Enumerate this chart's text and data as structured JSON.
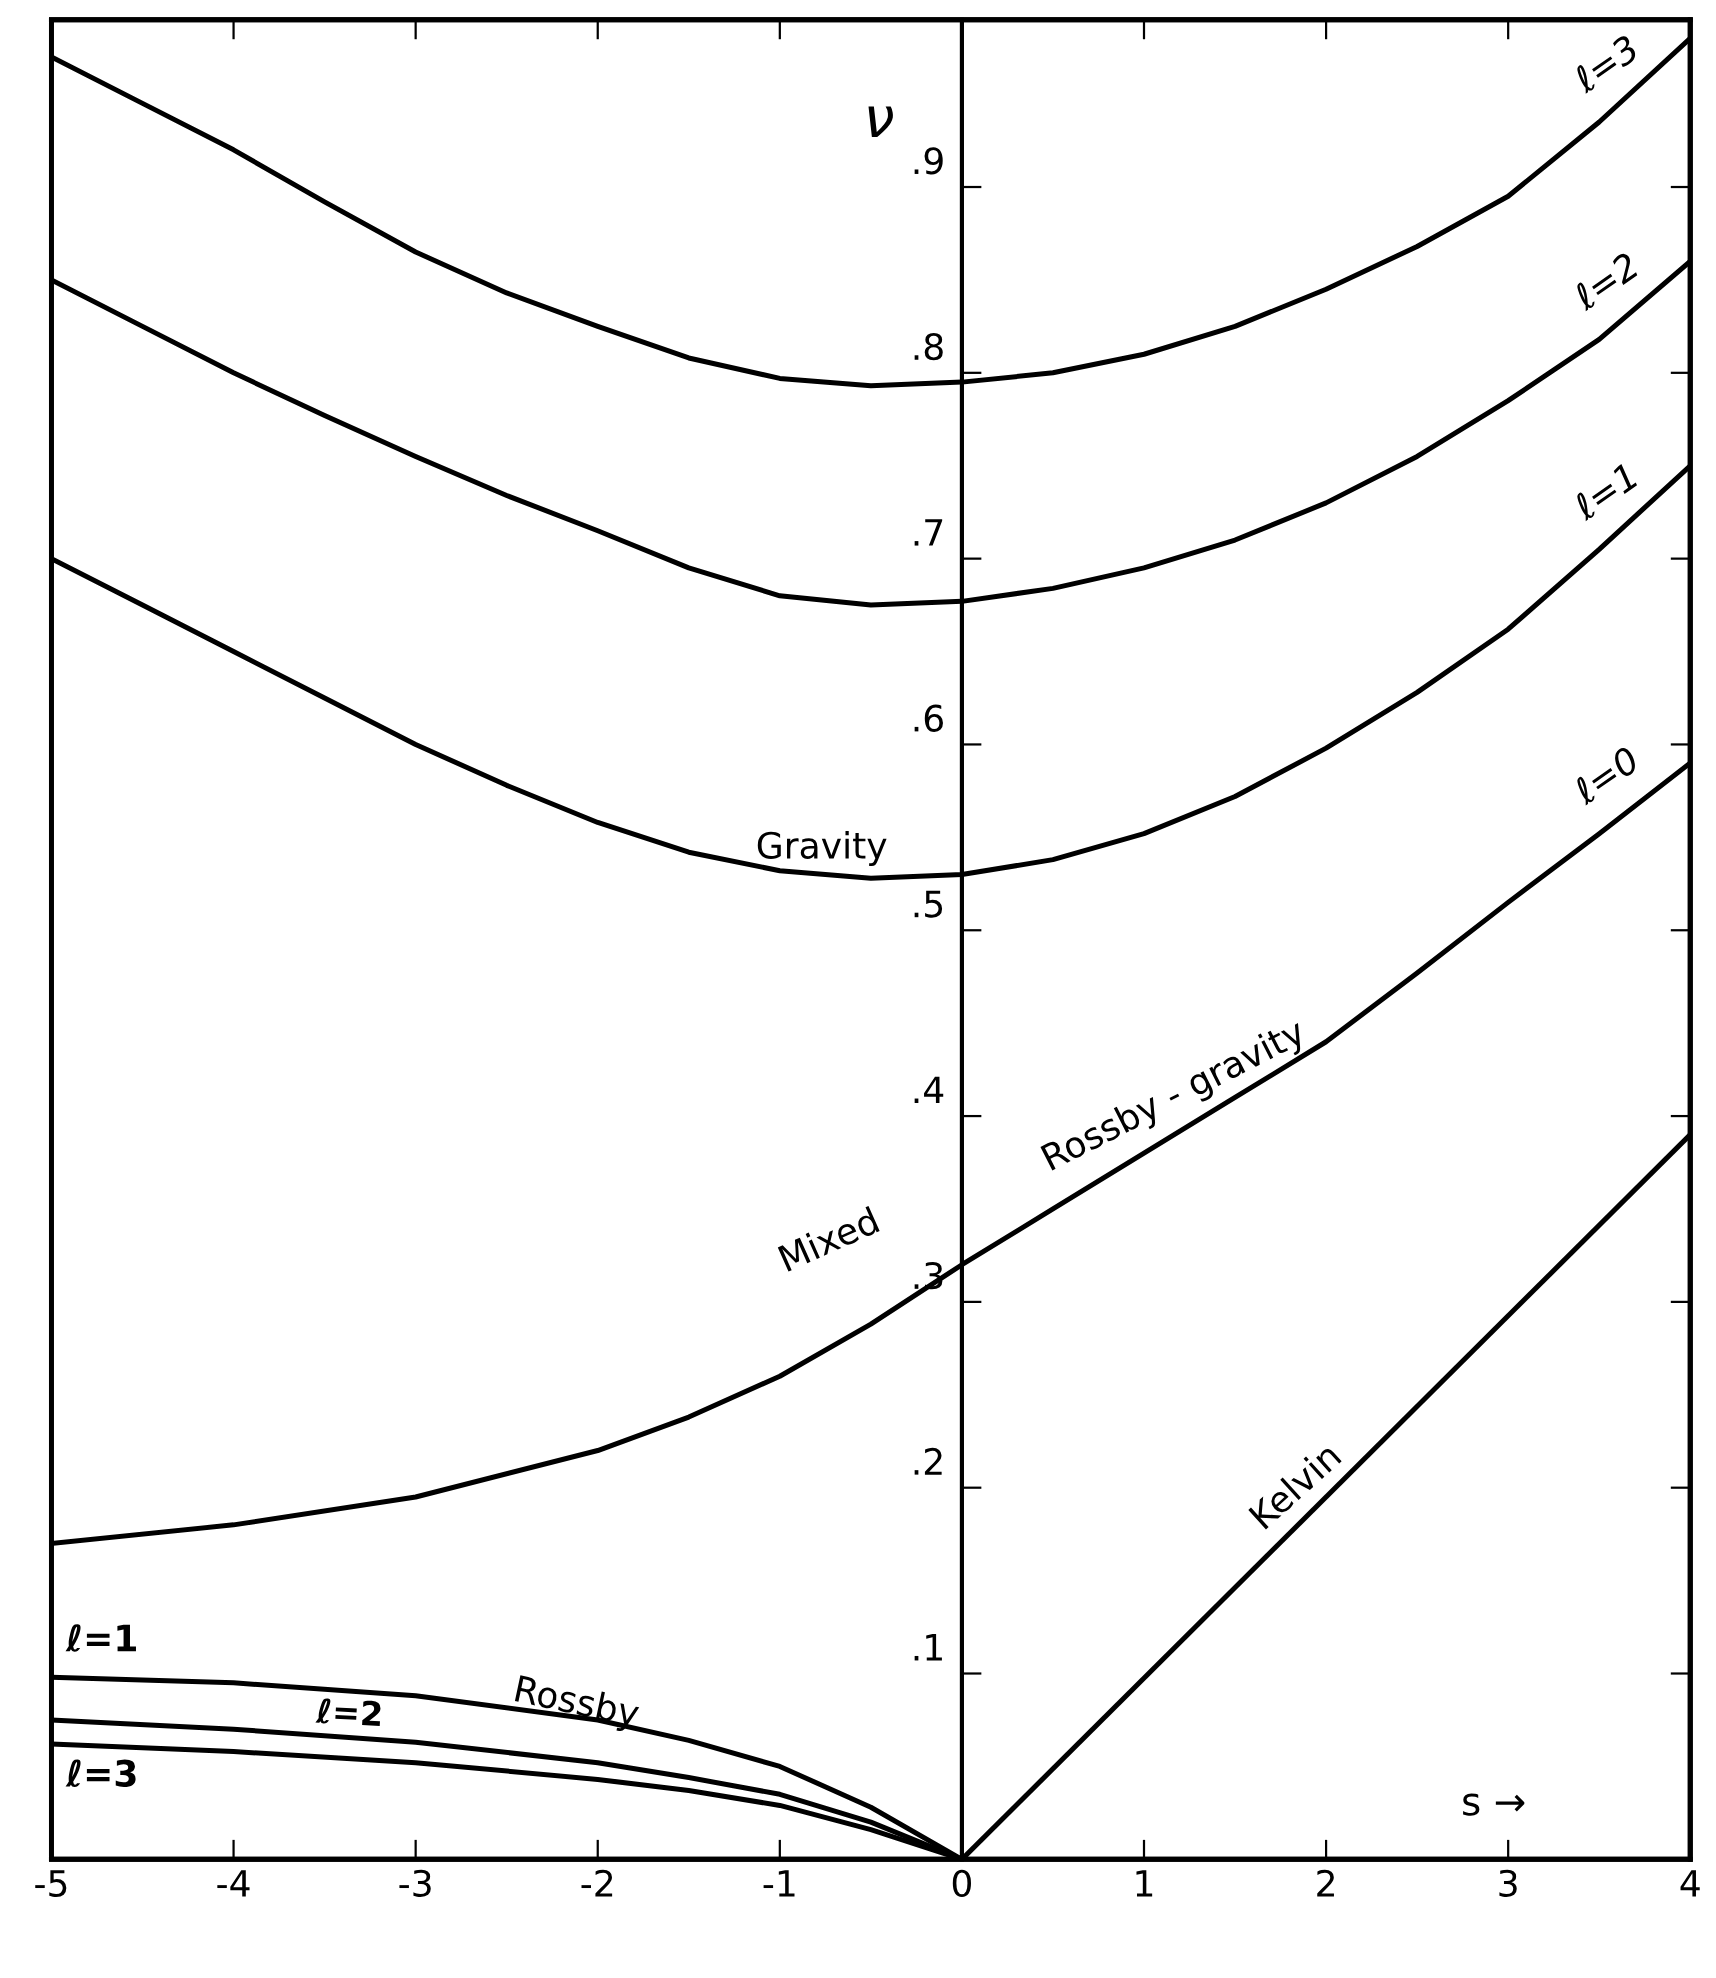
{
  "chart_data": {
    "type": "line",
    "xlabel": "s →",
    "ylabel": "ν",
    "xlim": [
      -5,
      4
    ],
    "ylim": [
      0,
      0.99
    ],
    "xticks": [
      {
        "value": -5,
        "label": "-5"
      },
      {
        "value": -4,
        "label": "-4"
      },
      {
        "value": -3,
        "label": "-3"
      },
      {
        "value": -2,
        "label": "-2"
      },
      {
        "value": -1,
        "label": "-1"
      },
      {
        "value": 0,
        "label": "0"
      },
      1,
      2,
      3,
      4
    ],
    "yticks": [
      {
        "value": 0.1,
        "label": ".1"
      },
      {
        "value": 0.2,
        "label": ".2"
      },
      {
        "value": 0.3,
        "label": ".3"
      },
      {
        "value": 0.4,
        "label": ".4"
      },
      {
        "value": 0.5,
        "label": ".5"
      },
      {
        "value": 0.6,
        "label": ".6"
      },
      {
        "value": 0.7,
        "label": ".7"
      },
      {
        "value": 0.8,
        "label": ".8"
      },
      {
        "value": 0.9,
        "label": ".9"
      }
    ],
    "grid": false,
    "legend": false,
    "marker": "none",
    "line_style": "solid",
    "series": [
      {
        "name": "ℓ=3",
        "color": "#000000",
        "x": [
          -5,
          -4.5,
          -4,
          -3.5,
          -3,
          -2.5,
          -2,
          -1.5,
          -1,
          -0.5,
          0,
          0.5,
          1,
          1.5,
          2,
          2.5,
          3,
          3.5,
          4
        ],
        "values": [
          0.97,
          0.945,
          0.92,
          0.892,
          0.865,
          0.843,
          0.825,
          0.808,
          0.797,
          0.793,
          0.795,
          0.8,
          0.81,
          0.825,
          0.845,
          0.868,
          0.895,
          0.935,
          0.98
        ]
      },
      {
        "name": "ℓ=2",
        "color": "#000000",
        "x": [
          -5,
          -4.5,
          -4,
          -3.5,
          -3,
          -2.5,
          -2,
          -1.5,
          -1,
          -0.5,
          0,
          0.5,
          1,
          1.5,
          2,
          2.5,
          3,
          3.5,
          4
        ],
        "values": [
          0.85,
          0.825,
          0.8,
          0.777,
          0.755,
          0.734,
          0.715,
          0.695,
          0.68,
          0.675,
          0.677,
          0.684,
          0.695,
          0.71,
          0.73,
          0.755,
          0.785,
          0.818,
          0.86
        ]
      },
      {
        "name": "ℓ=1",
        "color": "#000000",
        "x": [
          -5,
          -4.5,
          -4,
          -3.5,
          -3,
          -2.5,
          -2,
          -1.5,
          -1,
          -0.5,
          0,
          0.5,
          1,
          1.5,
          2,
          2.5,
          3,
          3.5,
          4
        ],
        "values": [
          0.7,
          0.675,
          0.65,
          0.625,
          0.6,
          0.578,
          0.558,
          0.542,
          0.532,
          0.528,
          0.53,
          0.538,
          0.552,
          0.572,
          0.598,
          0.628,
          0.662,
          0.705,
          0.75
        ]
      },
      {
        "name": "ℓ=0",
        "color": "#000000",
        "x": [
          -5,
          -4,
          -3,
          -2,
          -1.5,
          -1,
          -0.5,
          0,
          0.5,
          1,
          1.5,
          2,
          2.5,
          3,
          3.5,
          4
        ],
        "values": [
          0.17,
          0.18,
          0.195,
          0.22,
          0.238,
          0.26,
          0.288,
          0.32,
          0.35,
          0.38,
          0.41,
          0.44,
          0.477,
          0.515,
          0.552,
          0.59
        ]
      },
      {
        "color": "#000000",
        "x": [
          0,
          4
        ],
        "values": [
          0,
          0.39
        ]
      },
      {
        "name": "ℓ=1",
        "color": "#000000",
        "x": [
          -5,
          -4,
          -3,
          -2,
          -1.5,
          -1,
          -0.5,
          0
        ],
        "values": [
          0.098,
          0.095,
          0.088,
          0.075,
          0.064,
          0.05,
          0.028,
          0
        ]
      },
      {
        "name": "ℓ=2",
        "color": "#000000",
        "x": [
          -5,
          -4,
          -3,
          -2,
          -1.5,
          -1,
          -0.5,
          0
        ],
        "values": [
          0.075,
          0.07,
          0.063,
          0.052,
          0.044,
          0.035,
          0.02,
          0
        ]
      },
      {
        "name": "ℓ=3",
        "color": "#000000",
        "x": [
          -5,
          -4,
          -3,
          -2,
          -1.5,
          -1,
          -0.5,
          0
        ],
        "values": [
          0.062,
          0.058,
          0.052,
          0.043,
          0.037,
          0.029,
          0.016,
          0
        ]
      }
    ],
    "annotations": [
      "Gravity",
      "Mixed",
      "Rossby - gravity",
      "Rossby",
      "Kelvin"
    ]
  }
}
